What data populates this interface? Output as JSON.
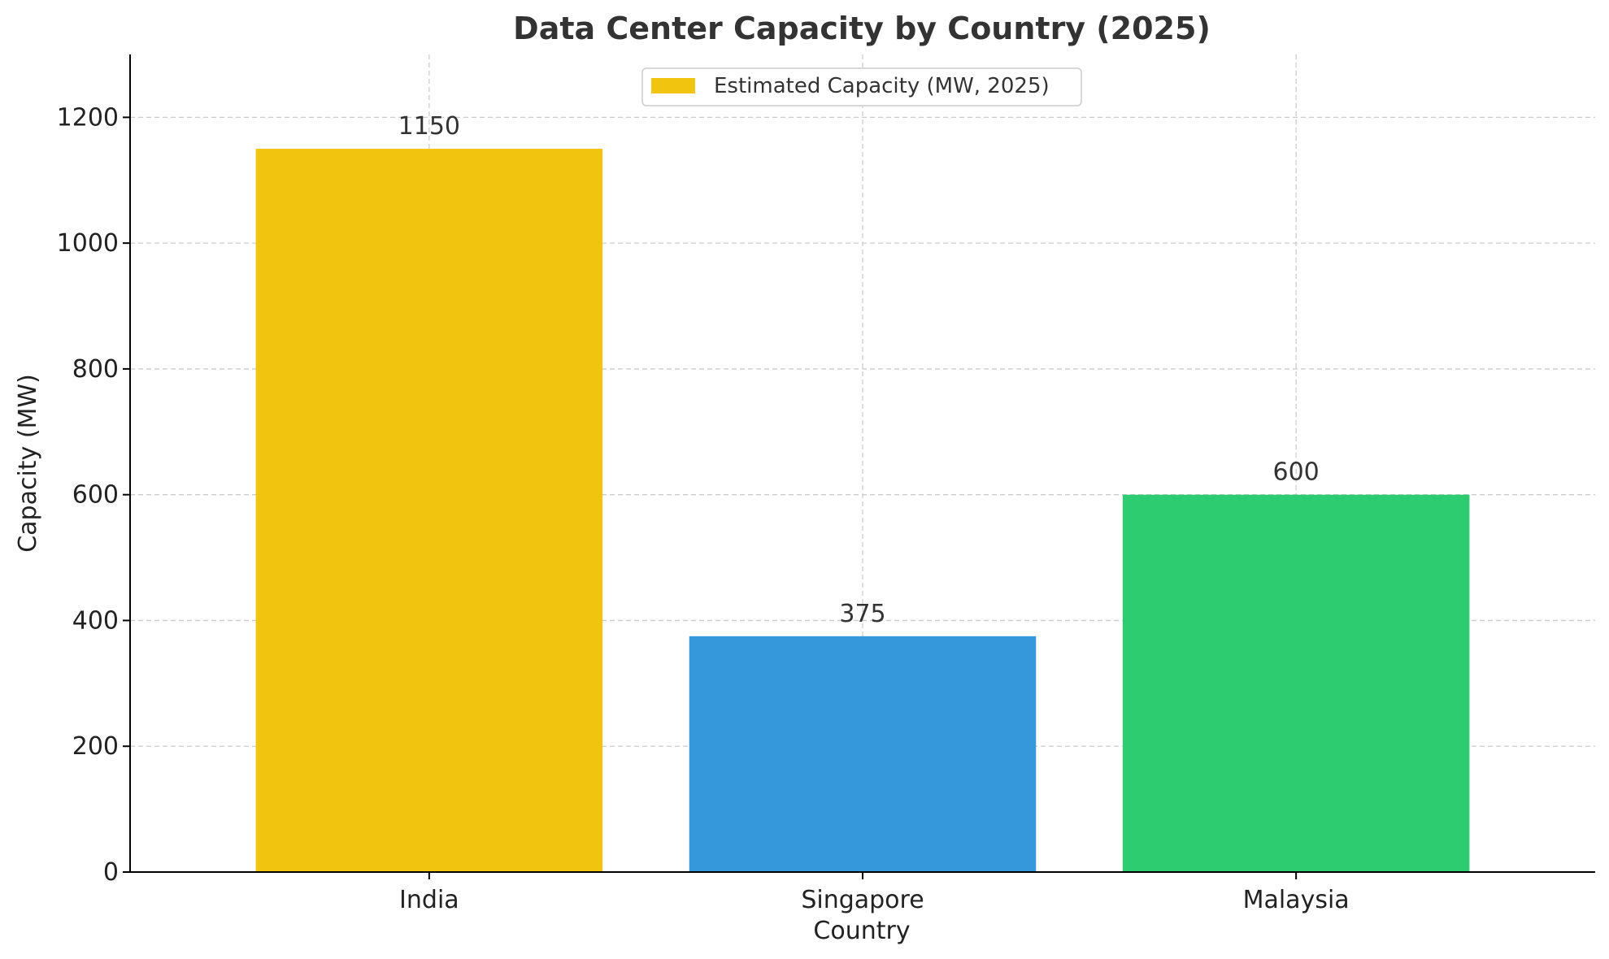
{
  "chart_data": {
    "type": "bar",
    "title": "Data Center Capacity by Country (2025)",
    "xlabel": "Country",
    "ylabel": "Capacity (MW)",
    "categories": [
      "India",
      "Singapore",
      "Malaysia"
    ],
    "series": [
      {
        "name": "Estimated Capacity (MW, 2025)",
        "values": [
          1150,
          375,
          600
        ],
        "colors": [
          "#f1c40f",
          "#3498db",
          "#2ecc71"
        ]
      }
    ],
    "data_labels": [
      "1150",
      "375",
      "600"
    ],
    "yticks": [
      0,
      200,
      400,
      600,
      800,
      1000,
      1200
    ],
    "ylim": [
      0,
      1300
    ],
    "grid": true,
    "legend_position": "top-center"
  }
}
